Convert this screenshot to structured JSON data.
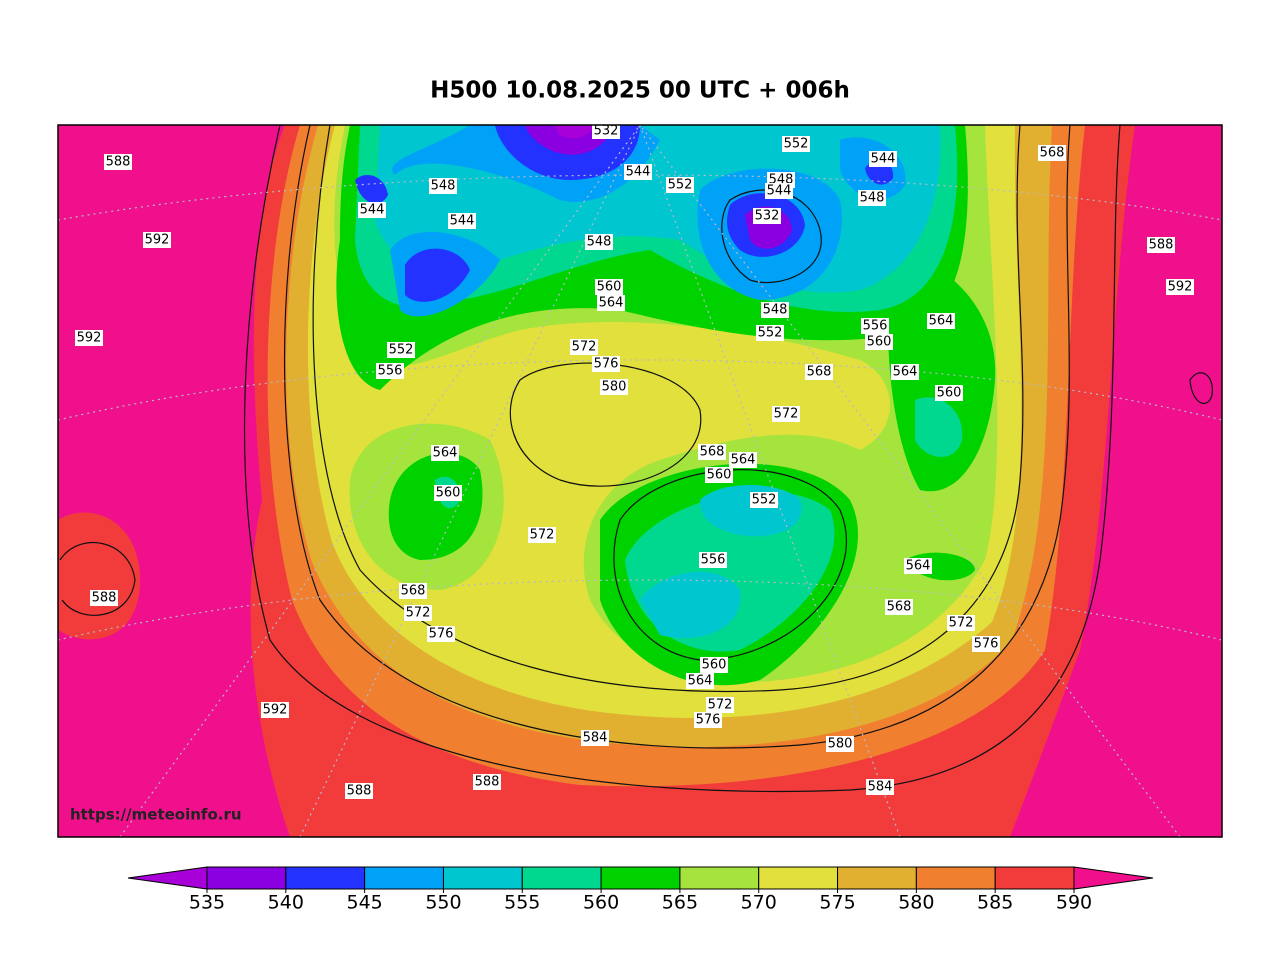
{
  "title": "H500  10.08.2025 00 UTC + 006h",
  "watermark": "https://meteoinfo.ru",
  "colorbar": {
    "levels": [
      535,
      540,
      545,
      550,
      555,
      560,
      565,
      570,
      575,
      580,
      585,
      590
    ],
    "colors": [
      "#a800d8",
      "#8a00e0",
      "#2432ff",
      "#00a2f8",
      "#00c6d0",
      "#00d890",
      "#00d200",
      "#a4e43c",
      "#e2e03c",
      "#e2b030",
      "#f08030",
      "#f23c3c",
      "#f0108c"
    ]
  },
  "contour_labels": [
    588,
    592,
    592,
    588,
    592,
    588,
    588,
    584,
    580,
    584,
    576,
    572,
    564,
    560,
    576,
    572,
    568,
    572,
    564,
    560,
    552,
    556,
    544,
    548,
    544,
    548,
    560,
    564,
    572,
    576,
    580,
    532,
    544,
    552,
    552,
    548,
    544,
    532,
    548,
    552,
    544,
    548,
    568,
    588,
    592,
    556,
    560,
    564,
    564,
    568,
    572,
    560,
    568,
    564,
    560,
    552,
    556,
    564,
    568,
    572,
    576
  ]
}
